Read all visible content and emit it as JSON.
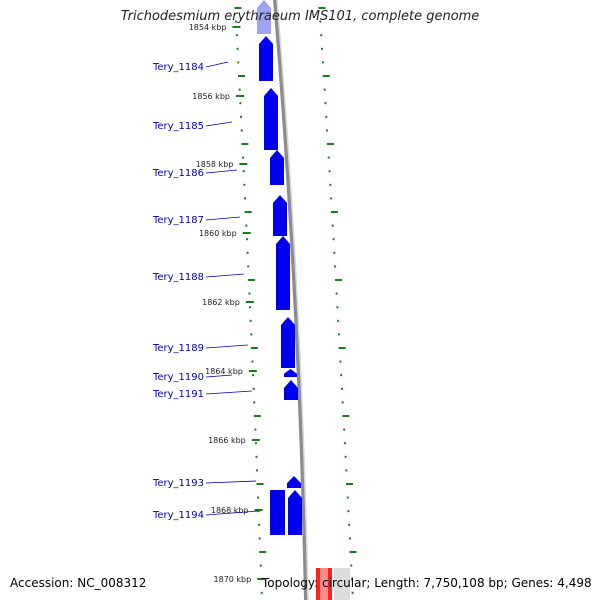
{
  "title": "Trichodesmium erythraeum IMS101, complete genome",
  "accession": "Accession: NC_008312",
  "topology": "Topology: circular; Length: 7,750,108 bp; Genes: 4,498",
  "colors": {
    "gene": "#0000ee",
    "gene_highlight": "#9ea4f0",
    "label": "#0000b4",
    "tick": "#1b7a1b",
    "backbone": "#8c8c8c",
    "marker": "#ff2020"
  },
  "kbp_ticks": [
    {
      "label": "1854 kbp"
    },
    {
      "label": "1856 kbp"
    },
    {
      "label": "1858 kbp"
    },
    {
      "label": "1860 kbp"
    },
    {
      "label": "1862 kbp"
    },
    {
      "label": "1864 kbp"
    },
    {
      "label": "1866 kbp"
    },
    {
      "label": "1868 kbp"
    },
    {
      "label": "1870 kbp"
    }
  ],
  "genes": [
    {
      "label": "Tery_1184"
    },
    {
      "label": "Tery_1185"
    },
    {
      "label": "Tery_1186"
    },
    {
      "label": "Tery_1187"
    },
    {
      "label": "Tery_1188"
    },
    {
      "label": "Tery_1189"
    },
    {
      "label": "Tery_1190"
    },
    {
      "label": "Tery_1191"
    },
    {
      "label": "Tery_1193"
    },
    {
      "label": "Tery_1194"
    }
  ]
}
